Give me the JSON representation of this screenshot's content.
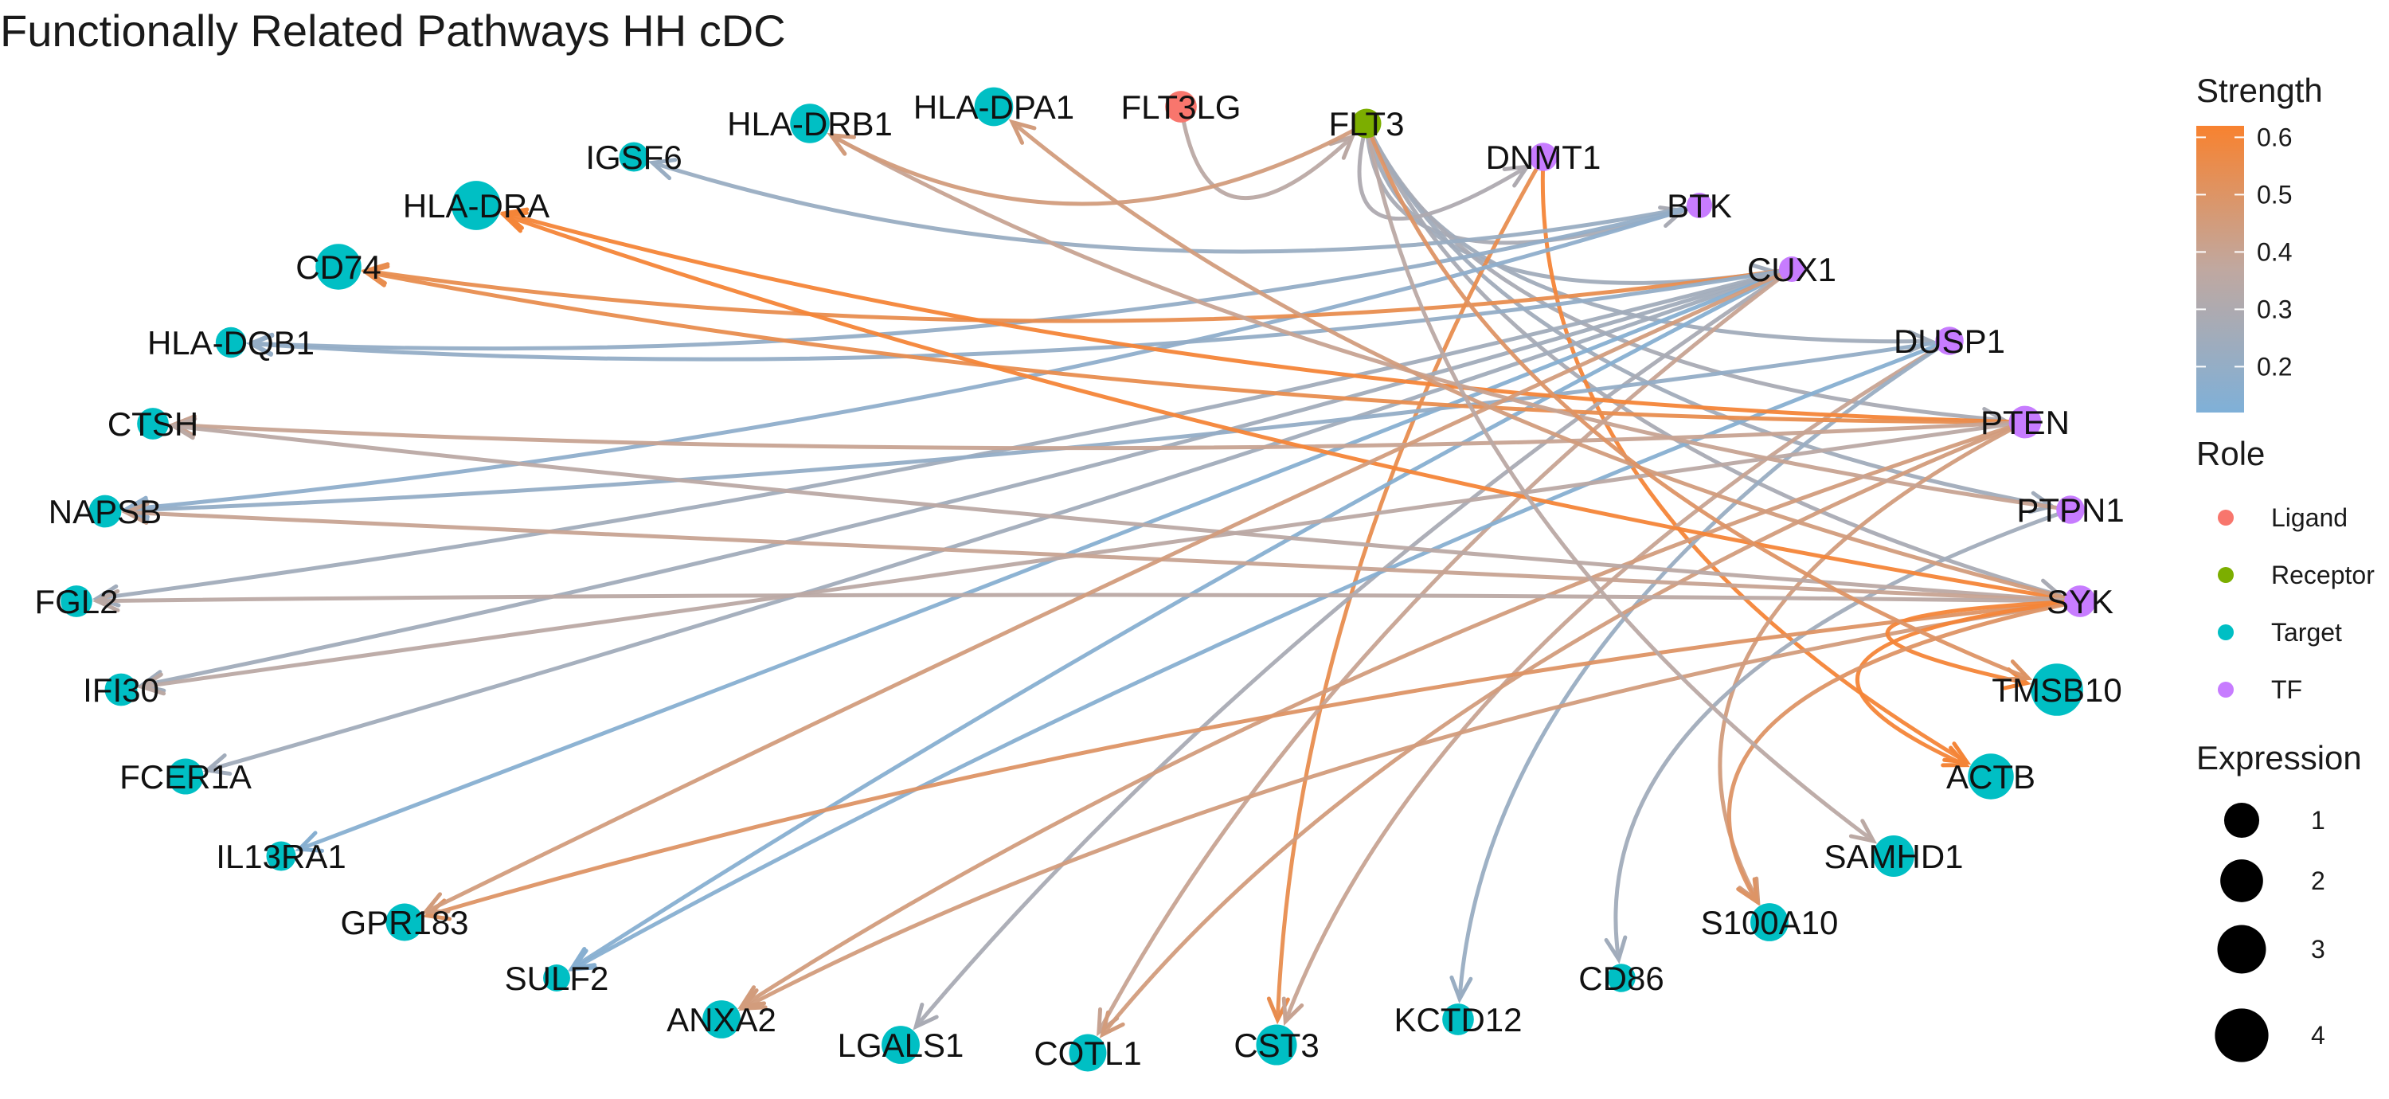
{
  "title": "Functionally Related Pathways HH cDC",
  "legend": {
    "strength_title": "Strength",
    "strength_ticks": [
      "0.6",
      "0.5",
      "0.4",
      "0.3",
      "0.2"
    ],
    "strength_tick_values": [
      0.6,
      0.5,
      0.4,
      0.3,
      0.2
    ],
    "strength_range": [
      0.12,
      0.62
    ],
    "strength_colors": {
      "low": "#7fb0d8",
      "mid": "#c0a8a0",
      "high": "#f8822f"
    },
    "role_title": "Role",
    "roles": [
      {
        "name": "Ligand",
        "color": "#f8766d"
      },
      {
        "name": "Receptor",
        "color": "#7cae00"
      },
      {
        "name": "Target",
        "color": "#00bfc4"
      },
      {
        "name": "TF",
        "color": "#c77cff"
      }
    ],
    "expression_title": "Expression",
    "expression_values": [
      "1",
      "2",
      "3",
      "4"
    ]
  },
  "nodes": [
    {
      "id": "FLT3LG",
      "role": "Ligand",
      "expr": 0.8
    },
    {
      "id": "FLT3",
      "role": "Receptor",
      "expr": 0.6
    },
    {
      "id": "DNMT1",
      "role": "TF",
      "expr": 0.5
    },
    {
      "id": "BTK",
      "role": "TF",
      "expr": 0.3
    },
    {
      "id": "CUX1",
      "role": "TF",
      "expr": 0.3
    },
    {
      "id": "DUSP1",
      "role": "TF",
      "expr": 0.5
    },
    {
      "id": "PTEN",
      "role": "TF",
      "expr": 0.9
    },
    {
      "id": "PTPN1",
      "role": "TF",
      "expr": 0.5
    },
    {
      "id": "SYK",
      "role": "TF",
      "expr": 0.8
    },
    {
      "id": "TMSB10",
      "role": "Target",
      "expr": 4.3
    },
    {
      "id": "ACTB",
      "role": "Target",
      "expr": 2.9
    },
    {
      "id": "SAMHD1",
      "role": "Target",
      "expr": 2.1
    },
    {
      "id": "S100A10",
      "role": "Target",
      "expr": 1.6
    },
    {
      "id": "CD86",
      "role": "Target",
      "expr": 0.5
    },
    {
      "id": "KCTD12",
      "role": "Target",
      "expr": 0.8
    },
    {
      "id": "CST3",
      "role": "Target",
      "expr": 2.0
    },
    {
      "id": "COTL1",
      "role": "Target",
      "expr": 1.5
    },
    {
      "id": "LGALS1",
      "role": "Target",
      "expr": 1.6
    },
    {
      "id": "ANXA2",
      "role": "Target",
      "expr": 1.6
    },
    {
      "id": "SULF2",
      "role": "Target",
      "expr": 0.4
    },
    {
      "id": "GPR183",
      "role": "Target",
      "expr": 1.5
    },
    {
      "id": "IL13RA1",
      "role": "Target",
      "expr": 0.6
    },
    {
      "id": "FCER1A",
      "role": "Target",
      "expr": 1.3
    },
    {
      "id": "IFI30",
      "role": "Target",
      "expr": 0.9
    },
    {
      "id": "FGL2",
      "role": "Target",
      "expr": 0.8
    },
    {
      "id": "NAPSB",
      "role": "Target",
      "expr": 0.9
    },
    {
      "id": "CTSH",
      "role": "Target",
      "expr": 0.8
    },
    {
      "id": "HLA-DQB1",
      "role": "Target",
      "expr": 0.7
    },
    {
      "id": "CD74",
      "role": "Target",
      "expr": 2.9
    },
    {
      "id": "HLA-DRA",
      "role": "Target",
      "expr": 3.6
    },
    {
      "id": "IGSF6",
      "role": "Target",
      "expr": 0.6
    },
    {
      "id": "HLA-DRB1",
      "role": "Target",
      "expr": 1.8
    },
    {
      "id": "HLA-DPA1",
      "role": "Target",
      "expr": 1.7
    }
  ],
  "edges": [
    {
      "from": "FLT3LG",
      "to": "FLT3",
      "strength": 0.35
    },
    {
      "from": "FLT3",
      "to": "BTK",
      "strength": 0.28
    },
    {
      "from": "FLT3",
      "to": "CUX1",
      "strength": 0.25
    },
    {
      "from": "FLT3",
      "to": "DUSP1",
      "strength": 0.25
    },
    {
      "from": "FLT3",
      "to": "PTEN",
      "strength": 0.28
    },
    {
      "from": "FLT3",
      "to": "PTPN1",
      "strength": 0.25
    },
    {
      "from": "FLT3",
      "to": "SYK",
      "strength": 0.28
    },
    {
      "from": "FLT3",
      "to": "DNMT1",
      "strength": 0.3
    },
    {
      "from": "DNMT1",
      "to": "CST3",
      "strength": 0.55
    },
    {
      "from": "DNMT1",
      "to": "ACTB",
      "strength": 0.6
    },
    {
      "from": "BTK",
      "to": "IGSF6",
      "strength": 0.22
    },
    {
      "from": "BTK",
      "to": "NAPSB",
      "strength": 0.18
    },
    {
      "from": "BTK",
      "to": "HLA-DQB1",
      "strength": 0.2
    },
    {
      "from": "CUX1",
      "to": "CD74",
      "strength": 0.55
    },
    {
      "from": "CUX1",
      "to": "HLA-DQB1",
      "strength": 0.2
    },
    {
      "from": "CUX1",
      "to": "FGL2",
      "strength": 0.25
    },
    {
      "from": "CUX1",
      "to": "IFI30",
      "strength": 0.25
    },
    {
      "from": "CUX1",
      "to": "FCER1A",
      "strength": 0.25
    },
    {
      "from": "CUX1",
      "to": "IL13RA1",
      "strength": 0.15
    },
    {
      "from": "CUX1",
      "to": "SULF2",
      "strength": 0.15
    },
    {
      "from": "CUX1",
      "to": "LGALS1",
      "strength": 0.28
    },
    {
      "from": "CUX1",
      "to": "COTL1",
      "strength": 0.4
    },
    {
      "from": "DUSP1",
      "to": "NAPSB",
      "strength": 0.2
    },
    {
      "from": "DUSP1",
      "to": "SULF2",
      "strength": 0.15
    },
    {
      "from": "DUSP1",
      "to": "CST3",
      "strength": 0.4
    },
    {
      "from": "DUSP1",
      "to": "KCTD12",
      "strength": 0.22
    },
    {
      "from": "PTEN",
      "to": "HLA-DRA",
      "strength": 0.6
    },
    {
      "from": "PTEN",
      "to": "CD74",
      "strength": 0.55
    },
    {
      "from": "PTEN",
      "to": "CTSH",
      "strength": 0.4
    },
    {
      "from": "PTEN",
      "to": "IFI30",
      "strength": 0.35
    },
    {
      "from": "PTEN",
      "to": "ANXA2",
      "strength": 0.45
    },
    {
      "from": "PTEN",
      "to": "COTL1",
      "strength": 0.45
    },
    {
      "from": "PTEN",
      "to": "S100A10",
      "strength": 0.45
    },
    {
      "from": "PTPN1",
      "to": "HLA-DRB1",
      "strength": 0.4
    },
    {
      "from": "PTPN1",
      "to": "CD86",
      "strength": 0.25
    },
    {
      "from": "SYK",
      "to": "HLA-DRA",
      "strength": 0.6
    },
    {
      "from": "SYK",
      "to": "HLA-DPA1",
      "strength": 0.45
    },
    {
      "from": "SYK",
      "to": "CTSH",
      "strength": 0.35
    },
    {
      "from": "SYK",
      "to": "NAPSB",
      "strength": 0.4
    },
    {
      "from": "SYK",
      "to": "FGL2",
      "strength": 0.35
    },
    {
      "from": "SYK",
      "to": "GPR183",
      "strength": 0.5
    },
    {
      "from": "SYK",
      "to": "ANXA2",
      "strength": 0.45
    },
    {
      "from": "SYK",
      "to": "TMSB10",
      "strength": 0.6
    },
    {
      "from": "SYK",
      "to": "ACTB",
      "strength": 0.6
    },
    {
      "from": "SYK",
      "to": "S100A10",
      "strength": 0.5
    },
    {
      "from": "CUX1",
      "to": "GPR183",
      "strength": 0.45
    },
    {
      "from": "FLT3",
      "to": "SAMHD1",
      "strength": 0.35
    },
    {
      "from": "FLT3",
      "to": "TMSB10",
      "strength": 0.5
    },
    {
      "from": "FLT3",
      "to": "HLA-DRB1",
      "strength": 0.45
    }
  ]
}
